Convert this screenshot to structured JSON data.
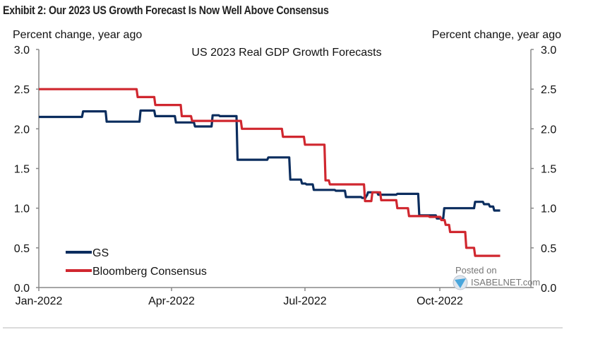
{
  "exhibit_title": "Exhibit 2: Our 2023 US Growth Forecast Is Now Well Above Consensus",
  "watermark": {
    "line1": "Posted on",
    "line2": "ISABELNET.com"
  },
  "chart_data": {
    "type": "line",
    "title": "US 2023 Real GDP Growth Forecasts",
    "ylabel_left": "Percent change, year ago",
    "ylabel_right": "Percent change, year ago",
    "xlabel": "",
    "x_unit": "days since 2022-01-01",
    "xlim": [
      0,
      320
    ],
    "ylim": [
      0.0,
      3.0
    ],
    "y_ticks": [
      0.0,
      0.5,
      1.0,
      1.5,
      2.0,
      2.5,
      3.0
    ],
    "y_tick_labels": [
      "0.0",
      "0.5",
      "1.0",
      "1.5",
      "2.0",
      "2.5",
      "3.0"
    ],
    "x_ticks": [
      0,
      90,
      181,
      273
    ],
    "x_tick_labels": [
      "Jan-2022",
      "Apr-2022",
      "Jul-2022",
      "Oct-2022"
    ],
    "grid": false,
    "legend_position": "bottom-left",
    "step": true,
    "series": [
      {
        "name": "GS",
        "color": "#0b2d5e",
        "points": [
          [
            0,
            2.15
          ],
          [
            30,
            2.22
          ],
          [
            46,
            2.09
          ],
          [
            69,
            2.23
          ],
          [
            79,
            2.16
          ],
          [
            93,
            2.08
          ],
          [
            106,
            2.03
          ],
          [
            118,
            2.17
          ],
          [
            123,
            2.16
          ],
          [
            135,
            1.61
          ],
          [
            156,
            1.64
          ],
          [
            171,
            1.36
          ],
          [
            179,
            1.31
          ],
          [
            182,
            1.3
          ],
          [
            187,
            1.23
          ],
          [
            202,
            1.22
          ],
          [
            209,
            1.14
          ],
          [
            220,
            1.13
          ],
          [
            223,
            1.16
          ],
          [
            224,
            1.2
          ],
          [
            231,
            1.17
          ],
          [
            244,
            1.18
          ],
          [
            259,
            0.91
          ],
          [
            271,
            0.87
          ],
          [
            276,
            1.0
          ],
          [
            297,
            1.08
          ],
          [
            303,
            1.05
          ],
          [
            307,
            1.02
          ],
          [
            310,
            0.97
          ],
          [
            314,
            0.97
          ]
        ]
      },
      {
        "name": "Bloomberg Consensus",
        "color": "#d0272f",
        "points": [
          [
            0,
            2.5
          ],
          [
            67,
            2.4
          ],
          [
            79,
            2.3
          ],
          [
            97,
            2.16
          ],
          [
            104,
            2.1
          ],
          [
            138,
            2.0
          ],
          [
            166,
            1.9
          ],
          [
            181,
            1.8
          ],
          [
            195,
            1.35
          ],
          [
            198,
            1.3
          ],
          [
            222,
            1.09
          ],
          [
            227,
            1.2
          ],
          [
            233,
            1.1
          ],
          [
            244,
            1.0
          ],
          [
            252,
            0.9
          ],
          [
            266,
            0.89
          ],
          [
            274,
            0.85
          ],
          [
            277,
            0.79
          ],
          [
            280,
            0.7
          ],
          [
            291,
            0.5
          ],
          [
            297,
            0.4
          ],
          [
            314,
            0.4
          ]
        ]
      }
    ]
  }
}
